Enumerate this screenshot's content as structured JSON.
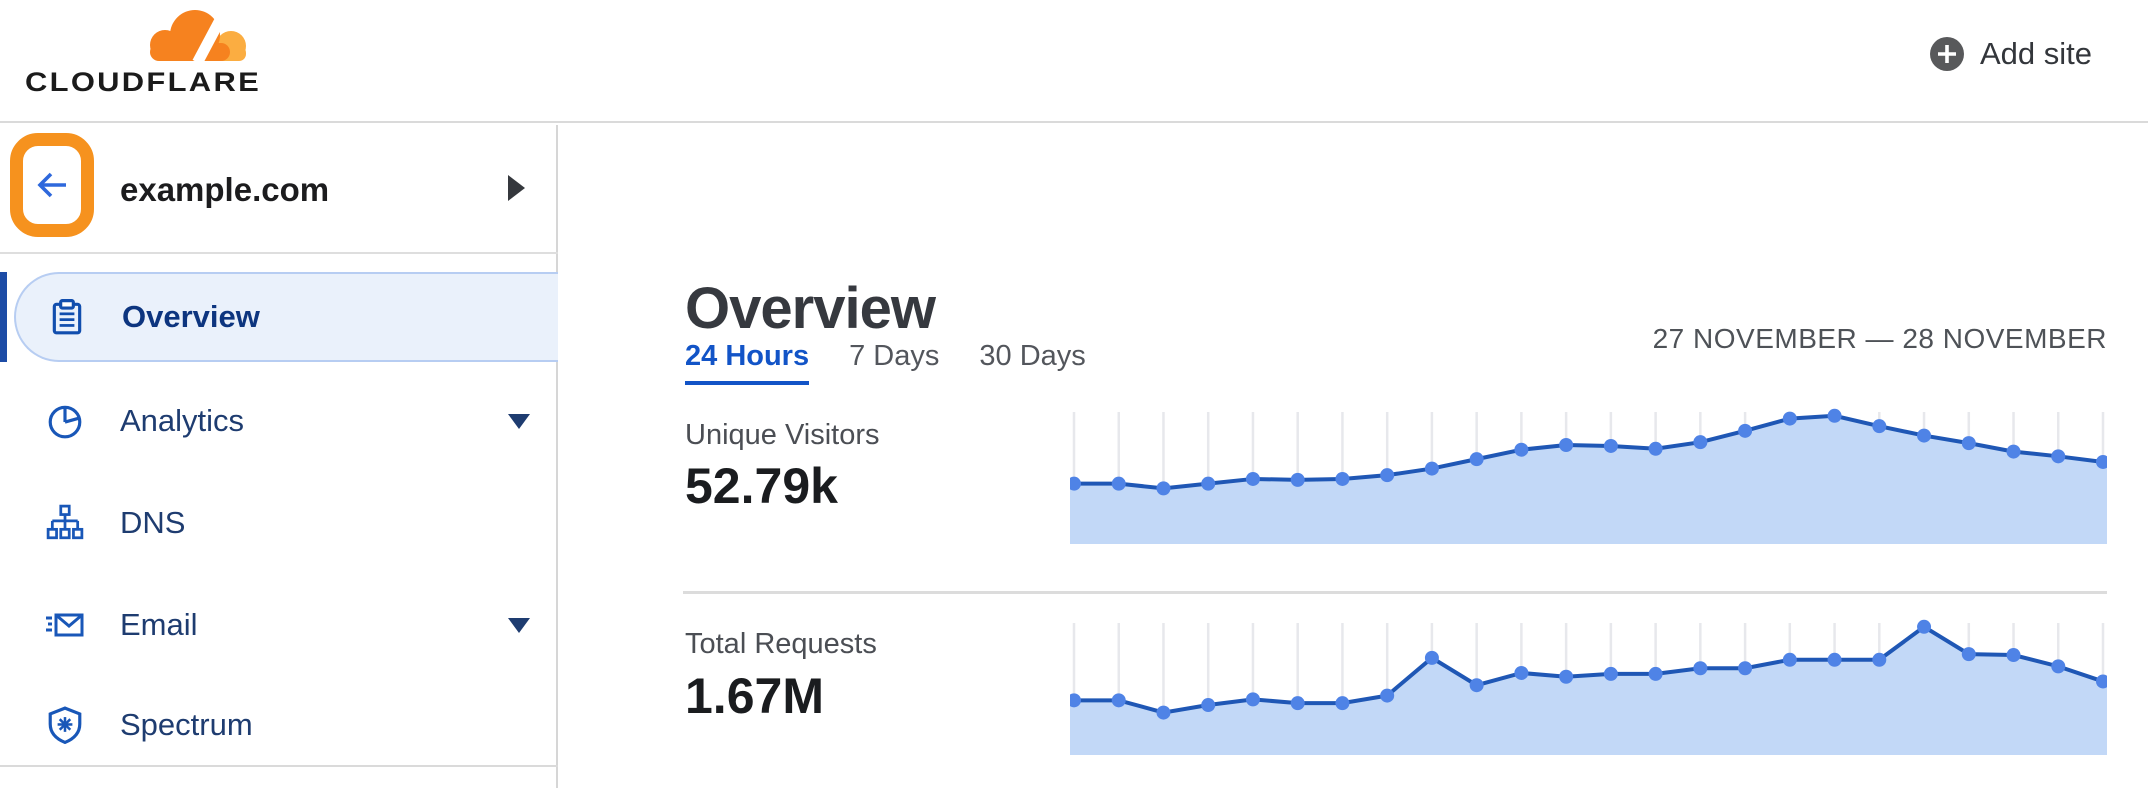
{
  "header": {
    "logo_text": "CLOUDFLARE",
    "add_site_label": "Add site"
  },
  "sidebar": {
    "site": {
      "domain": "example.com"
    },
    "items": [
      {
        "label": "Overview",
        "icon": "clipboard-icon",
        "selected": true,
        "has_caret": false
      },
      {
        "label": "Analytics",
        "icon": "pie-chart-icon",
        "selected": false,
        "has_caret": true
      },
      {
        "label": "DNS",
        "icon": "dns-tree-icon",
        "selected": false,
        "has_caret": false
      },
      {
        "label": "Email",
        "icon": "email-icon",
        "selected": false,
        "has_caret": true
      },
      {
        "label": "Spectrum",
        "icon": "shield-icon",
        "selected": false,
        "has_caret": false
      }
    ]
  },
  "main": {
    "title": "Overview",
    "tabs": [
      {
        "label": "24 Hours",
        "active": true
      },
      {
        "label": "7 Days",
        "active": false
      },
      {
        "label": "30 Days",
        "active": false
      }
    ],
    "date_range": "27 NOVEMBER — 28 NOVEMBER",
    "stats": [
      {
        "label": "Unique Visitors",
        "value": "52.79k"
      },
      {
        "label": "Total Requests",
        "value": "1.67M"
      }
    ]
  },
  "chart_data": [
    {
      "type": "area",
      "title": "Unique Visitors",
      "total_label": "52.79k",
      "x_description": "24 hourly points over the 24 Hours range (axis unlabeled)",
      "y_description": "relative height units estimated from pixels (axis unlabeled)",
      "values": [
        64,
        64,
        59,
        64,
        69,
        68,
        69,
        73,
        80,
        90,
        100,
        105,
        104,
        101,
        108,
        120,
        133,
        136,
        125,
        115,
        107,
        98,
        93,
        87
      ],
      "ylim": [
        0,
        140
      ],
      "grid": "vertical lines at each point",
      "legend": "none"
    },
    {
      "type": "area",
      "title": "Total Requests",
      "total_label": "1.67M",
      "x_description": "24 hourly points over the 24 Hours range (axis unlabeled)",
      "y_description": "relative height units estimated from pixels (axis unlabeled)",
      "values": [
        58,
        58,
        45,
        53,
        59,
        55,
        55,
        63,
        103,
        74,
        87,
        83,
        86,
        86,
        92,
        92,
        101,
        101,
        101,
        136,
        107,
        106,
        94,
        78
      ],
      "ylim": [
        0,
        140
      ],
      "grid": "vertical lines at each point",
      "legend": "none"
    }
  ],
  "colors": {
    "brand_orange": "#F6821F",
    "brand_orange_light": "#FBAD41",
    "annotation_orange": "#F6921E",
    "accent_blue": "#1254c7",
    "nav_icon_blue": "#1957b8",
    "nav_text_navy": "#1e3c70",
    "selected_pill_bg": "#eaf1fb",
    "chart_line": "#1f57b5",
    "chart_dot": "#4f83e6",
    "chart_fill": "#c2d8f7",
    "chart_grid": "#e7e8ec",
    "divider_gray": "#dcdcdc"
  }
}
